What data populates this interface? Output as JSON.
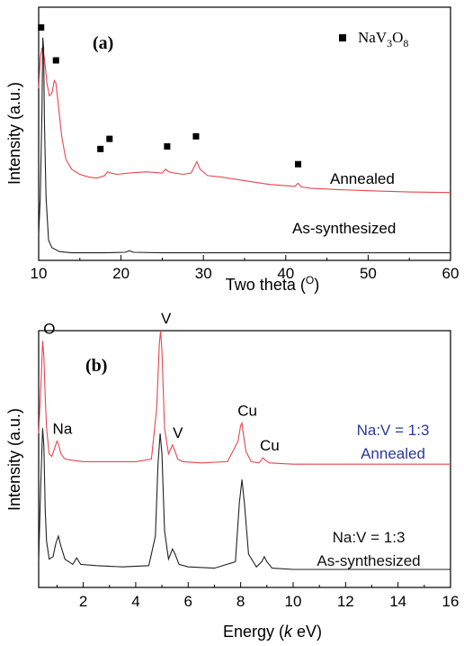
{
  "chart_data": [
    {
      "type": "line",
      "panel_label": "(a)",
      "xlabel_text": "Two theta (",
      "xlabel_unit": "O",
      "xlabel_close": ")",
      "ylabel": "Intensity (a.u.)",
      "xlim": [
        10,
        60
      ],
      "xticks": [
        "10",
        "20",
        "30",
        "40",
        "50",
        "60"
      ],
      "legend": {
        "marker": "square",
        "label": "NaV",
        "sub1": "3",
        "mid": "O",
        "sub2": "8",
        "placement": "top-right"
      },
      "colors": {
        "Annealed": "#e8454f",
        "As-synthesized": "#222222"
      },
      "series": [
        {
          "name": "Annealed",
          "label_text": "Annealed",
          "color": "#e8454f",
          "x": [
            10.0,
            10.2,
            10.4,
            10.7,
            11.0,
            11.3,
            11.6,
            11.9,
            12.1,
            12.4,
            12.8,
            13.3,
            14.0,
            15.0,
            16.0,
            17.0,
            17.6,
            18.0,
            18.4,
            18.8,
            19.5,
            21,
            23,
            25,
            25.4,
            25.8,
            26.5,
            27.5,
            28.5,
            28.9,
            29.2,
            29.6,
            30.5,
            32,
            34,
            36,
            38,
            40,
            41.1,
            41.5,
            41.9,
            43,
            46,
            50,
            55,
            60
          ],
          "y": [
            0.68,
            0.8,
            0.84,
            0.8,
            0.7,
            0.65,
            0.66,
            0.71,
            0.7,
            0.61,
            0.49,
            0.4,
            0.36,
            0.34,
            0.33,
            0.325,
            0.33,
            0.335,
            0.35,
            0.345,
            0.34,
            0.345,
            0.35,
            0.345,
            0.36,
            0.35,
            0.345,
            0.34,
            0.345,
            0.37,
            0.39,
            0.36,
            0.335,
            0.33,
            0.32,
            0.31,
            0.3,
            0.295,
            0.292,
            0.305,
            0.29,
            0.285,
            0.28,
            0.275,
            0.27,
            0.268
          ]
        },
        {
          "name": "As-synthesized",
          "label_text": "As-synthesized",
          "color": "#222222",
          "x": [
            10.0,
            10.2,
            10.4,
            10.5,
            10.6,
            10.7,
            10.9,
            11.2,
            11.6,
            12.5,
            14,
            18,
            20.5,
            21,
            21.5,
            25,
            30,
            40,
            50,
            60
          ],
          "y": [
            0.1,
            0.25,
            0.6,
            0.88,
            0.84,
            0.55,
            0.25,
            0.08,
            0.05,
            0.035,
            0.03,
            0.03,
            0.032,
            0.038,
            0.032,
            0.03,
            0.03,
            0.03,
            0.03,
            0.03
          ]
        }
      ],
      "markers": [
        {
          "x": 10.3,
          "y": 0.92
        },
        {
          "x": 12.1,
          "y": 0.79
        },
        {
          "x": 17.5,
          "y": 0.44
        },
        {
          "x": 18.6,
          "y": 0.48
        },
        {
          "x": 25.6,
          "y": 0.45
        },
        {
          "x": 29.1,
          "y": 0.49
        },
        {
          "x": 41.5,
          "y": 0.38
        }
      ]
    },
    {
      "type": "line",
      "panel_label": "(b)",
      "xlabel_text": "Energy (",
      "xlabel_italic": "k",
      "xlabel_rest": " eV)",
      "ylabel": "Intensity (a.u.)",
      "xlim": [
        0.3,
        16
      ],
      "xticks": [
        "2",
        "4",
        "6",
        "8",
        "10",
        "12",
        "14",
        "16"
      ],
      "colors": {
        "Annealed": "#e8454f",
        "As-synthesized": "#222222"
      },
      "series": [
        {
          "name": "Na:V = 1:3 Annealed",
          "label_line1": "Na:V = 1:3",
          "label_line2": "Annealed",
          "label_color": "#2a3a9a",
          "color": "#e8454f",
          "x": [
            0.3,
            0.4,
            0.45,
            0.5,
            0.55,
            0.6,
            0.7,
            0.8,
            0.9,
            1.0,
            1.05,
            1.15,
            1.3,
            1.6,
            2,
            3,
            4,
            4.6,
            4.8,
            4.9,
            4.95,
            5.0,
            5.1,
            5.25,
            5.4,
            5.5,
            5.6,
            5.8,
            6.5,
            7.5,
            7.9,
            8.0,
            8.05,
            8.1,
            8.2,
            8.4,
            8.7,
            8.85,
            8.95,
            9.1,
            10,
            12,
            14,
            16
          ],
          "y": [
            0.6,
            0.82,
            0.96,
            0.9,
            0.74,
            0.62,
            0.52,
            0.51,
            0.54,
            0.57,
            0.56,
            0.52,
            0.5,
            0.495,
            0.49,
            0.49,
            0.49,
            0.5,
            0.7,
            0.95,
            1.0,
            0.92,
            0.62,
            0.52,
            0.555,
            0.53,
            0.5,
            0.49,
            0.485,
            0.49,
            0.57,
            0.63,
            0.64,
            0.6,
            0.53,
            0.49,
            0.485,
            0.505,
            0.495,
            0.485,
            0.48,
            0.48,
            0.48,
            0.48
          ]
        },
        {
          "name": "Na:V = 1:3 As-synthesized",
          "label_line1": "Na:V = 1:3",
          "label_line2": "As-synthesized",
          "label_color": "#111111",
          "color": "#222222",
          "x": [
            0.3,
            0.38,
            0.45,
            0.5,
            0.55,
            0.6,
            0.7,
            0.85,
            0.95,
            1.05,
            1.15,
            1.3,
            1.6,
            1.75,
            1.9,
            2.5,
            3.5,
            4.5,
            4.75,
            4.85,
            4.93,
            5.0,
            5.1,
            5.25,
            5.4,
            5.5,
            5.65,
            6,
            7,
            7.8,
            7.95,
            8.05,
            8.15,
            8.3,
            8.6,
            8.8,
            8.9,
            9.0,
            9.2,
            10,
            12,
            14,
            16
          ],
          "y": [
            0.1,
            0.4,
            0.62,
            0.55,
            0.3,
            0.18,
            0.11,
            0.12,
            0.17,
            0.2,
            0.16,
            0.11,
            0.09,
            0.115,
            0.09,
            0.085,
            0.08,
            0.085,
            0.2,
            0.48,
            0.6,
            0.52,
            0.22,
            0.11,
            0.15,
            0.13,
            0.09,
            0.08,
            0.075,
            0.1,
            0.33,
            0.42,
            0.32,
            0.13,
            0.08,
            0.1,
            0.12,
            0.1,
            0.075,
            0.07,
            0.07,
            0.07,
            0.07
          ]
        }
      ],
      "peak_labels": [
        {
          "text": "O",
          "x": 0.5,
          "color": "#000000"
        },
        {
          "text": "Na",
          "x": 1.0,
          "color": "#000000"
        },
        {
          "text": "V",
          "x": 4.95,
          "color": "#000000"
        },
        {
          "text": "V",
          "x": 5.4,
          "color": "#000000"
        },
        {
          "text": "Cu",
          "x": 8.05,
          "color": "#000000"
        },
        {
          "text": "Cu",
          "x": 8.9,
          "color": "#000000"
        }
      ]
    }
  ]
}
